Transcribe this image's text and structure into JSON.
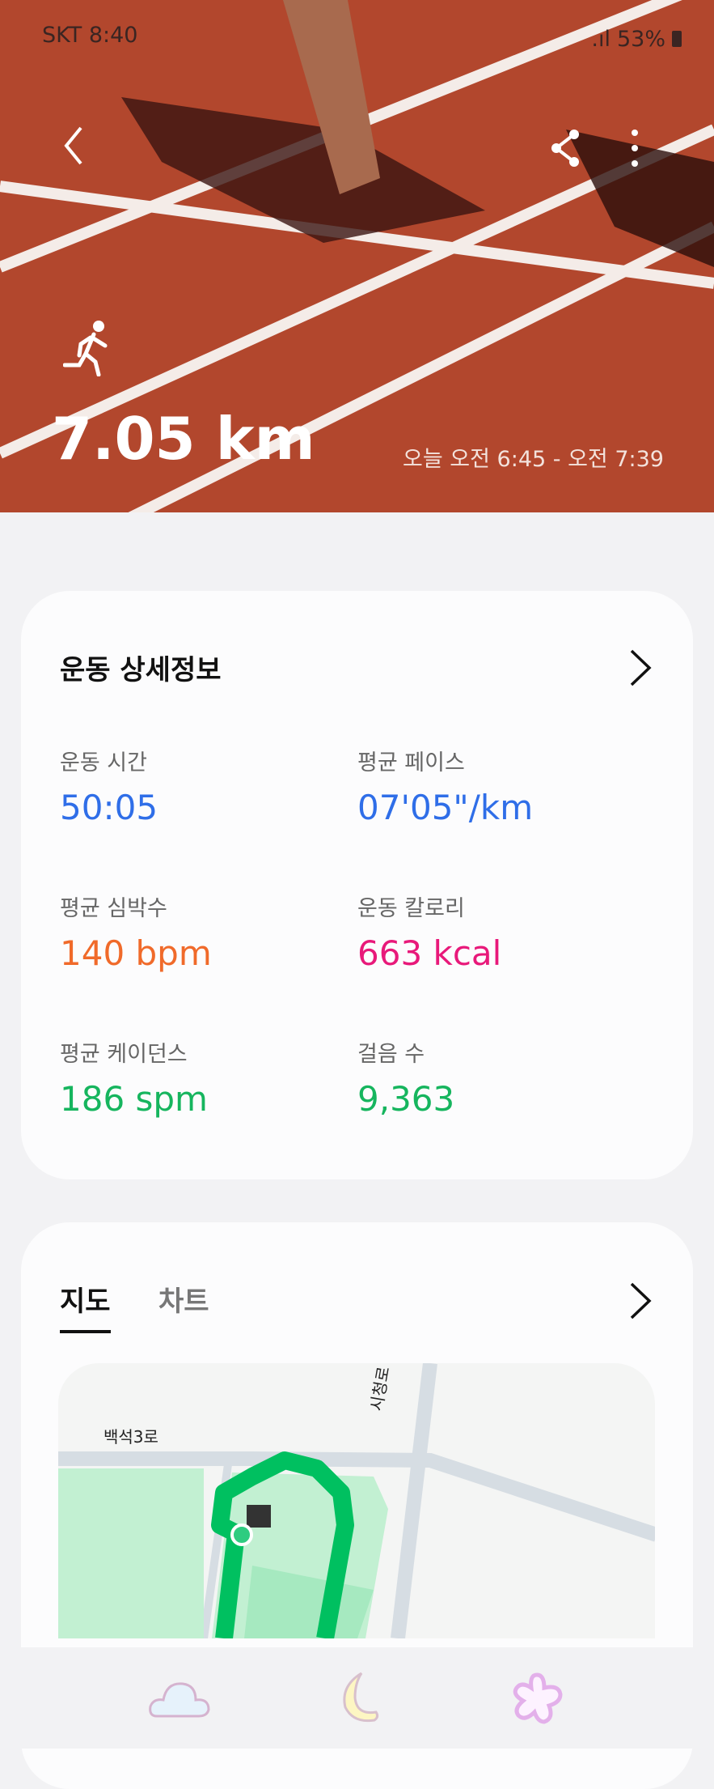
{
  "status_bar": {
    "carrier": "SKT",
    "time": "8:40",
    "battery": "53%"
  },
  "header": {
    "distance": "7.05 km",
    "time_range": "오늘 오전 6:45 - 오전 7:39",
    "activity_icon": "running-icon"
  },
  "details": {
    "title": "운동 상세정보",
    "stats": [
      {
        "label": "운동 시간",
        "value": "50:05",
        "color": "#2f6ee8"
      },
      {
        "label": "평균 페이스",
        "value": "07'05\"/km",
        "color": "#2f6ee8"
      },
      {
        "label": "평균 심박수",
        "value": "140 bpm",
        "color": "#f06a2a"
      },
      {
        "label": "운동 칼로리",
        "value": "663 kcal",
        "color": "#e8197a"
      },
      {
        "label": "평균 케이던스",
        "value": "186 spm",
        "color": "#16b55e"
      },
      {
        "label": "걸음 수",
        "value": "9,363",
        "color": "#16b55e"
      }
    ]
  },
  "map_card": {
    "tabs": [
      {
        "label": "지도",
        "active": true
      },
      {
        "label": "차트",
        "active": false
      }
    ],
    "roads": [
      "백석3로",
      "시청로"
    ],
    "route_color": "#00c060"
  },
  "nav": {
    "icons": [
      "cloud-icon",
      "moon-icon",
      "star-icon"
    ]
  }
}
